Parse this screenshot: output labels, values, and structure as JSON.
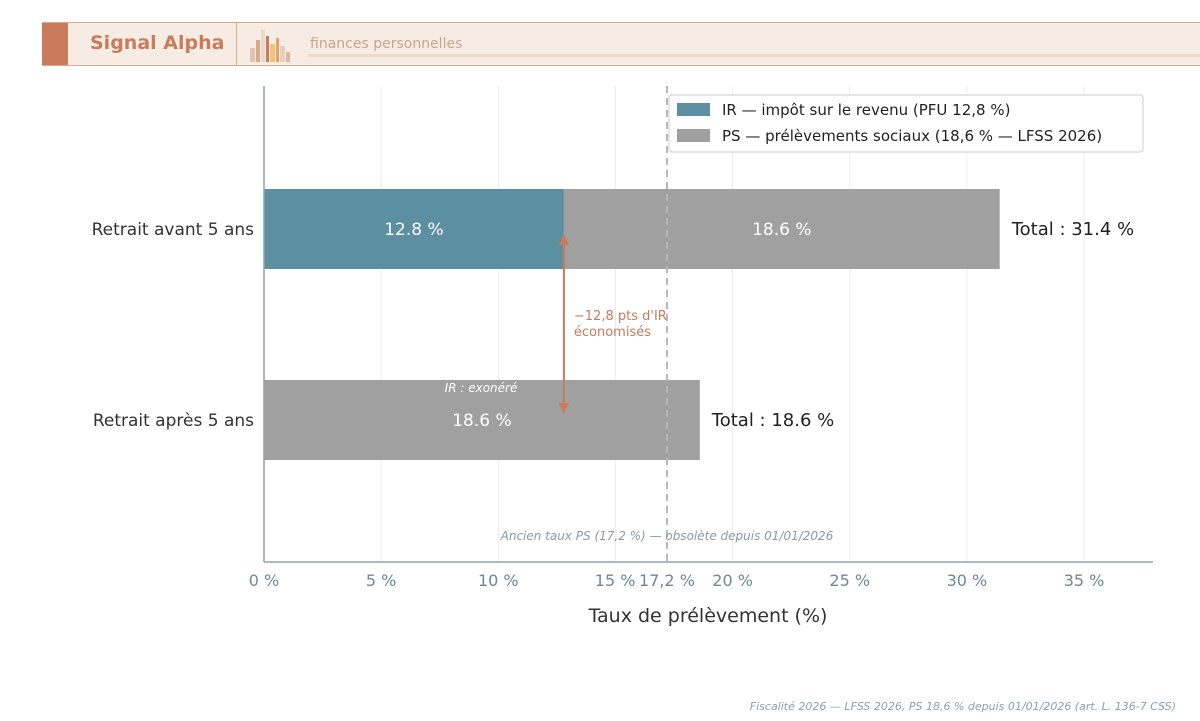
{
  "header": {
    "brand": "Signal Alpha",
    "tagline": "finances personnelles",
    "logo_icon": "bar-chart-books-icon"
  },
  "chart_data": {
    "type": "bar",
    "orientation": "horizontal",
    "stacked": true,
    "categories": [
      "Retrait avant 5 ans",
      "Retrait après 5 ans"
    ],
    "series": [
      {
        "name": "IR — impôt sur le revenu (PFU 12,8 %)",
        "values": [
          12.8,
          0
        ],
        "data_labels": [
          "12.8 %",
          ""
        ],
        "color": "#5b8fa1"
      },
      {
        "name": "PS — prélèvements sociaux (18,6 % — LFSS 2026)",
        "values": [
          18.6,
          18.6
        ],
        "data_labels": [
          "18.6 %",
          "18.6 %"
        ],
        "color": "#a0a0a0"
      }
    ],
    "totals": [
      "Total : 31.4 %",
      "Total : 18.6 %"
    ],
    "xlabel": "Taux de prélèvement (%)",
    "ylabel": "",
    "xlim": [
      0,
      38
    ],
    "xticks": [
      {
        "value": 0,
        "label": "0 %"
      },
      {
        "value": 5,
        "label": "5 %"
      },
      {
        "value": 10,
        "label": "10 %"
      },
      {
        "value": 15,
        "label": "15 %"
      },
      {
        "value": 17.2,
        "label": "17,2 %"
      },
      {
        "value": 20,
        "label": "20 %"
      },
      {
        "value": 25,
        "label": "25 %"
      },
      {
        "value": 30,
        "label": "30 %"
      },
      {
        "value": 35,
        "label": "35 %"
      }
    ],
    "grid": true,
    "legend_position": "top-right",
    "reference_line": {
      "value": 17.2,
      "label": "Ancien taux PS (17,2 %) — obsolète depuis 01/01/2026",
      "style": "dashed"
    },
    "annotations": {
      "exempt_label": "IR : exonéré",
      "savings_arrow": {
        "x": 12.8,
        "line1": "−12,8 pts d'IR",
        "line2": "économisés",
        "color": "#c97b5c"
      }
    }
  },
  "footer": {
    "source": "Fiscalité 2026 — LFSS 2026, PS 18,6 % depuis 01/01/2026 (art. L. 136-7 CSS)"
  }
}
